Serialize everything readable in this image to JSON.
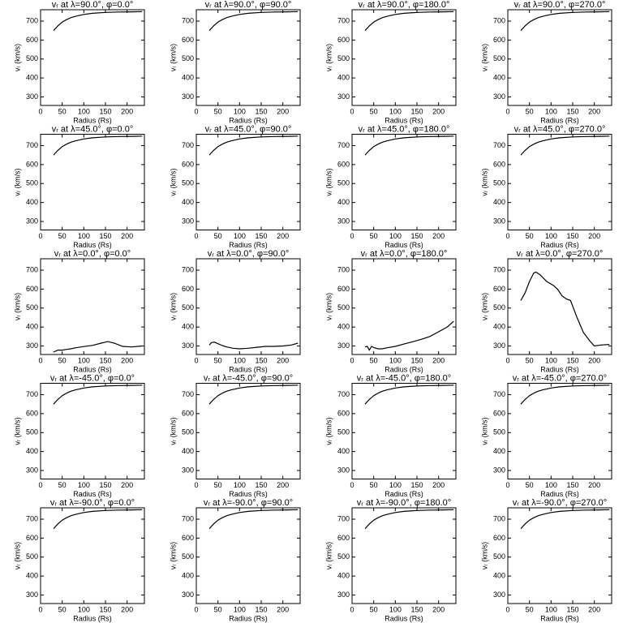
{
  "chart_data": [
    {
      "type": "line",
      "title": "vᵣ at λ=90.0°, φ=0.0°",
      "xlabel": "Radius (Rs)",
      "ylabel": "vᵣ (km/s)",
      "x": [
        30,
        40,
        50,
        60,
        70,
        80,
        100,
        120,
        150,
        180,
        210,
        235
      ],
      "values": [
        650,
        675,
        695,
        708,
        718,
        725,
        735,
        741,
        746,
        748,
        749,
        750
      ],
      "xlim": [
        0,
        240
      ],
      "ylim": [
        255,
        760
      ],
      "xticks": [
        0,
        50,
        100,
        150,
        200
      ],
      "yticks": [
        300,
        400,
        500,
        600,
        700
      ],
      "color": "#000000"
    },
    {
      "type": "line",
      "title": "vᵣ at λ=90.0°, φ=90.0°",
      "xlabel": "Radius (Rs)",
      "ylabel": "vᵣ (km/s)",
      "x": [
        30,
        40,
        50,
        60,
        70,
        80,
        100,
        120,
        150,
        180,
        210,
        235
      ],
      "values": [
        650,
        675,
        695,
        708,
        718,
        725,
        735,
        741,
        746,
        748,
        749,
        750
      ],
      "xlim": [
        0,
        240
      ],
      "ylim": [
        255,
        760
      ],
      "xticks": [
        0,
        50,
        100,
        150,
        200
      ],
      "yticks": [
        300,
        400,
        500,
        600,
        700
      ],
      "color": "#000000"
    },
    {
      "type": "line",
      "title": "vᵣ at λ=90.0°, φ=180.0°",
      "xlabel": "Radius (Rs)",
      "ylabel": "vᵣ (km/s)",
      "x": [
        30,
        40,
        50,
        60,
        70,
        80,
        100,
        120,
        150,
        180,
        210,
        235
      ],
      "values": [
        650,
        675,
        695,
        708,
        718,
        725,
        735,
        741,
        746,
        748,
        749,
        750
      ],
      "xlim": [
        0,
        240
      ],
      "ylim": [
        255,
        760
      ],
      "xticks": [
        0,
        50,
        100,
        150,
        200
      ],
      "yticks": [
        300,
        400,
        500,
        600,
        700
      ],
      "color": "#000000"
    },
    {
      "type": "line",
      "title": "vᵣ at λ=90.0°, φ=270.0°",
      "xlabel": "Radius (Rs)",
      "ylabel": "vᵣ (km/s)",
      "x": [
        30,
        40,
        50,
        60,
        70,
        80,
        100,
        120,
        150,
        180,
        210,
        235
      ],
      "values": [
        650,
        675,
        695,
        708,
        718,
        725,
        735,
        741,
        746,
        748,
        749,
        750
      ],
      "xlim": [
        0,
        240
      ],
      "ylim": [
        255,
        760
      ],
      "xticks": [
        0,
        50,
        100,
        150,
        200
      ],
      "yticks": [
        300,
        400,
        500,
        600,
        700
      ],
      "color": "#000000"
    },
    {
      "type": "line",
      "title": "vᵣ at λ=45.0°, φ=0.0°",
      "xlabel": "Radius (Rs)",
      "ylabel": "vᵣ (km/s)",
      "x": [
        30,
        40,
        50,
        60,
        70,
        80,
        100,
        120,
        150,
        180,
        210,
        235
      ],
      "values": [
        650,
        675,
        695,
        708,
        718,
        725,
        735,
        741,
        746,
        748,
        749,
        750
      ],
      "xlim": [
        0,
        240
      ],
      "ylim": [
        255,
        760
      ],
      "xticks": [
        0,
        50,
        100,
        150,
        200
      ],
      "yticks": [
        300,
        400,
        500,
        600,
        700
      ],
      "color": "#000000"
    },
    {
      "type": "line",
      "title": "vᵣ at λ=45.0°, φ=90.0°",
      "xlabel": "Radius (Rs)",
      "ylabel": "vᵣ (km/s)",
      "x": [
        30,
        40,
        50,
        60,
        70,
        80,
        100,
        120,
        150,
        180,
        210,
        235
      ],
      "values": [
        650,
        675,
        695,
        708,
        718,
        725,
        735,
        741,
        746,
        748,
        749,
        750
      ],
      "xlim": [
        0,
        240
      ],
      "ylim": [
        255,
        760
      ],
      "xticks": [
        0,
        50,
        100,
        150,
        200
      ],
      "yticks": [
        300,
        400,
        500,
        600,
        700
      ],
      "color": "#000000"
    },
    {
      "type": "line",
      "title": "vᵣ at λ=45.0°, φ=180.0°",
      "xlabel": "Radius (Rs)",
      "ylabel": "vᵣ (km/s)",
      "x": [
        30,
        40,
        50,
        60,
        70,
        80,
        100,
        120,
        150,
        180,
        210,
        235
      ],
      "values": [
        650,
        675,
        695,
        708,
        718,
        725,
        735,
        741,
        746,
        748,
        749,
        750
      ],
      "xlim": [
        0,
        240
      ],
      "ylim": [
        255,
        760
      ],
      "xticks": [
        0,
        50,
        100,
        150,
        200
      ],
      "yticks": [
        300,
        400,
        500,
        600,
        700
      ],
      "color": "#000000"
    },
    {
      "type": "line",
      "title": "vᵣ at λ=45.0°, φ=270.0°",
      "xlabel": "Radius (Rs)",
      "ylabel": "vᵣ (km/s)",
      "x": [
        30,
        40,
        50,
        60,
        70,
        80,
        100,
        120,
        150,
        180,
        210,
        235
      ],
      "values": [
        650,
        675,
        695,
        708,
        718,
        725,
        735,
        741,
        746,
        748,
        749,
        750
      ],
      "xlim": [
        0,
        240
      ],
      "ylim": [
        255,
        760
      ],
      "xticks": [
        0,
        50,
        100,
        150,
        200
      ],
      "yticks": [
        300,
        400,
        500,
        600,
        700
      ],
      "color": "#000000"
    },
    {
      "type": "line",
      "title": "vᵣ at λ=0.0°, φ=0.0°",
      "xlabel": "Radius (Rs)",
      "ylabel": "vᵣ (km/s)",
      "x": [
        30,
        40,
        50,
        60,
        70,
        80,
        100,
        120,
        140,
        155,
        170,
        190,
        210,
        235
      ],
      "values": [
        268,
        278,
        278,
        282,
        285,
        290,
        297,
        303,
        315,
        323,
        315,
        298,
        295,
        300
      ],
      "xlim": [
        0,
        240
      ],
      "ylim": [
        255,
        760
      ],
      "xticks": [
        0,
        50,
        100,
        150,
        200
      ],
      "yticks": [
        300,
        400,
        500,
        600,
        700
      ],
      "color": "#000000"
    },
    {
      "type": "line",
      "title": "vᵣ at λ=0.0°, φ=90.0°",
      "xlabel": "Radius (Rs)",
      "ylabel": "vᵣ (km/s)",
      "x": [
        30,
        35,
        42,
        50,
        60,
        70,
        85,
        100,
        120,
        140,
        160,
        180,
        200,
        220,
        235
      ],
      "values": [
        305,
        318,
        320,
        312,
        302,
        295,
        288,
        285,
        288,
        293,
        298,
        298,
        300,
        305,
        315
      ],
      "xlim": [
        0,
        240
      ],
      "ylim": [
        255,
        760
      ],
      "xticks": [
        0,
        50,
        100,
        150,
        200
      ],
      "yticks": [
        300,
        400,
        500,
        600,
        700
      ],
      "color": "#000000"
    },
    {
      "type": "line",
      "title": "vᵣ at λ=0.0°, φ=180.0°",
      "xlabel": "Radius (Rs)",
      "ylabel": "vᵣ (km/s)",
      "x": [
        30,
        35,
        40,
        45,
        50,
        60,
        70,
        80,
        100,
        120,
        140,
        160,
        180,
        200,
        220,
        235
      ],
      "values": [
        295,
        298,
        278,
        298,
        292,
        285,
        285,
        290,
        298,
        310,
        322,
        335,
        350,
        375,
        400,
        430
      ],
      "xlim": [
        0,
        240
      ],
      "ylim": [
        255,
        760
      ],
      "xticks": [
        0,
        50,
        100,
        150,
        200
      ],
      "yticks": [
        300,
        400,
        500,
        600,
        700
      ],
      "color": "#000000"
    },
    {
      "type": "line",
      "title": "vᵣ at λ=0.0°, φ=270.0°",
      "xlabel": "Radius (Rs)",
      "ylabel": "vᵣ (km/s)",
      "x": [
        30,
        40,
        50,
        60,
        65,
        75,
        90,
        105,
        115,
        125,
        135,
        145,
        160,
        175,
        190,
        200,
        215,
        235
      ],
      "values": [
        540,
        580,
        640,
        685,
        690,
        675,
        640,
        620,
        600,
        565,
        548,
        540,
        450,
        370,
        325,
        300,
        305,
        308
      ],
      "xlim": [
        0,
        240
      ],
      "ylim": [
        255,
        760
      ],
      "xticks": [
        0,
        50,
        100,
        150,
        200
      ],
      "yticks": [
        300,
        400,
        500,
        600,
        700
      ],
      "color": "#000000"
    },
    {
      "type": "line",
      "title": "vᵣ at λ=-45.0°, φ=0.0°",
      "xlabel": "Radius (Rs)",
      "ylabel": "vᵣ (km/s)",
      "x": [
        30,
        40,
        50,
        60,
        70,
        80,
        100,
        120,
        150,
        180,
        210,
        235
      ],
      "values": [
        650,
        675,
        695,
        708,
        718,
        725,
        735,
        741,
        746,
        748,
        749,
        750
      ],
      "xlim": [
        0,
        240
      ],
      "ylim": [
        255,
        760
      ],
      "xticks": [
        0,
        50,
        100,
        150,
        200
      ],
      "yticks": [
        300,
        400,
        500,
        600,
        700
      ],
      "color": "#000000"
    },
    {
      "type": "line",
      "title": "vᵣ at λ=-45.0°, φ=90.0°",
      "xlabel": "Radius (Rs)",
      "ylabel": "vᵣ (km/s)",
      "x": [
        30,
        40,
        50,
        60,
        70,
        80,
        100,
        120,
        150,
        180,
        210,
        235
      ],
      "values": [
        650,
        675,
        695,
        708,
        718,
        725,
        735,
        741,
        746,
        748,
        749,
        750
      ],
      "xlim": [
        0,
        240
      ],
      "ylim": [
        255,
        760
      ],
      "xticks": [
        0,
        50,
        100,
        150,
        200
      ],
      "yticks": [
        300,
        400,
        500,
        600,
        700
      ],
      "color": "#000000"
    },
    {
      "type": "line",
      "title": "vᵣ at λ=-45.0°, φ=180.0°",
      "xlabel": "Radius (Rs)",
      "ylabel": "vᵣ (km/s)",
      "x": [
        30,
        40,
        50,
        60,
        70,
        80,
        100,
        120,
        150,
        180,
        210,
        235
      ],
      "values": [
        650,
        675,
        695,
        708,
        718,
        725,
        735,
        741,
        746,
        748,
        749,
        750
      ],
      "xlim": [
        0,
        240
      ],
      "ylim": [
        255,
        760
      ],
      "xticks": [
        0,
        50,
        100,
        150,
        200
      ],
      "yticks": [
        300,
        400,
        500,
        600,
        700
      ],
      "color": "#000000"
    },
    {
      "type": "line",
      "title": "vᵣ at λ=-45.0°, φ=270.0°",
      "xlabel": "Radius (Rs)",
      "ylabel": "vᵣ (km/s)",
      "x": [
        30,
        40,
        50,
        60,
        70,
        80,
        100,
        120,
        150,
        180,
        210,
        235
      ],
      "values": [
        650,
        675,
        695,
        708,
        718,
        725,
        735,
        741,
        746,
        748,
        749,
        750
      ],
      "xlim": [
        0,
        240
      ],
      "ylim": [
        255,
        760
      ],
      "xticks": [
        0,
        50,
        100,
        150,
        200
      ],
      "yticks": [
        300,
        400,
        500,
        600,
        700
      ],
      "color": "#000000"
    },
    {
      "type": "line",
      "title": "vᵣ at λ=-90.0°, φ=0.0°",
      "xlabel": "Radius (Rs)",
      "ylabel": "vᵣ (km/s)",
      "x": [
        30,
        40,
        50,
        60,
        70,
        80,
        100,
        120,
        150,
        180,
        210,
        235
      ],
      "values": [
        650,
        675,
        695,
        708,
        718,
        725,
        735,
        741,
        746,
        748,
        749,
        750
      ],
      "xlim": [
        0,
        240
      ],
      "ylim": [
        255,
        760
      ],
      "xticks": [
        0,
        50,
        100,
        150,
        200
      ],
      "yticks": [
        300,
        400,
        500,
        600,
        700
      ],
      "color": "#000000"
    },
    {
      "type": "line",
      "title": "vᵣ at λ=-90.0°, φ=90.0°",
      "xlabel": "Radius (Rs)",
      "ylabel": "vᵣ (km/s)",
      "x": [
        30,
        40,
        50,
        60,
        70,
        80,
        100,
        120,
        150,
        180,
        210,
        235
      ],
      "values": [
        650,
        675,
        695,
        708,
        718,
        725,
        735,
        741,
        746,
        748,
        749,
        750
      ],
      "xlim": [
        0,
        240
      ],
      "ylim": [
        255,
        760
      ],
      "xticks": [
        0,
        50,
        100,
        150,
        200
      ],
      "yticks": [
        300,
        400,
        500,
        600,
        700
      ],
      "color": "#000000"
    },
    {
      "type": "line",
      "title": "vᵣ at λ=-90.0°, φ=180.0°",
      "xlabel": "Radius (Rs)",
      "ylabel": "vᵣ (km/s)",
      "x": [
        30,
        40,
        50,
        60,
        70,
        80,
        100,
        120,
        150,
        180,
        210,
        235
      ],
      "values": [
        650,
        675,
        695,
        708,
        718,
        725,
        735,
        741,
        746,
        748,
        749,
        750
      ],
      "xlim": [
        0,
        240
      ],
      "ylim": [
        255,
        760
      ],
      "xticks": [
        0,
        50,
        100,
        150,
        200
      ],
      "yticks": [
        300,
        400,
        500,
        600,
        700
      ],
      "color": "#000000"
    },
    {
      "type": "line",
      "title": "vᵣ at λ=-90.0°, φ=270.0°",
      "xlabel": "Radius (Rs)",
      "ylabel": "vᵣ (km/s)",
      "x": [
        30,
        40,
        50,
        60,
        70,
        80,
        100,
        120,
        150,
        180,
        210,
        235
      ],
      "values": [
        650,
        675,
        695,
        708,
        718,
        725,
        735,
        741,
        746,
        748,
        749,
        750
      ],
      "xlim": [
        0,
        240
      ],
      "ylim": [
        255,
        760
      ],
      "xticks": [
        0,
        50,
        100,
        150,
        200
      ],
      "yticks": [
        300,
        400,
        500,
        600,
        700
      ],
      "color": "#000000"
    }
  ]
}
